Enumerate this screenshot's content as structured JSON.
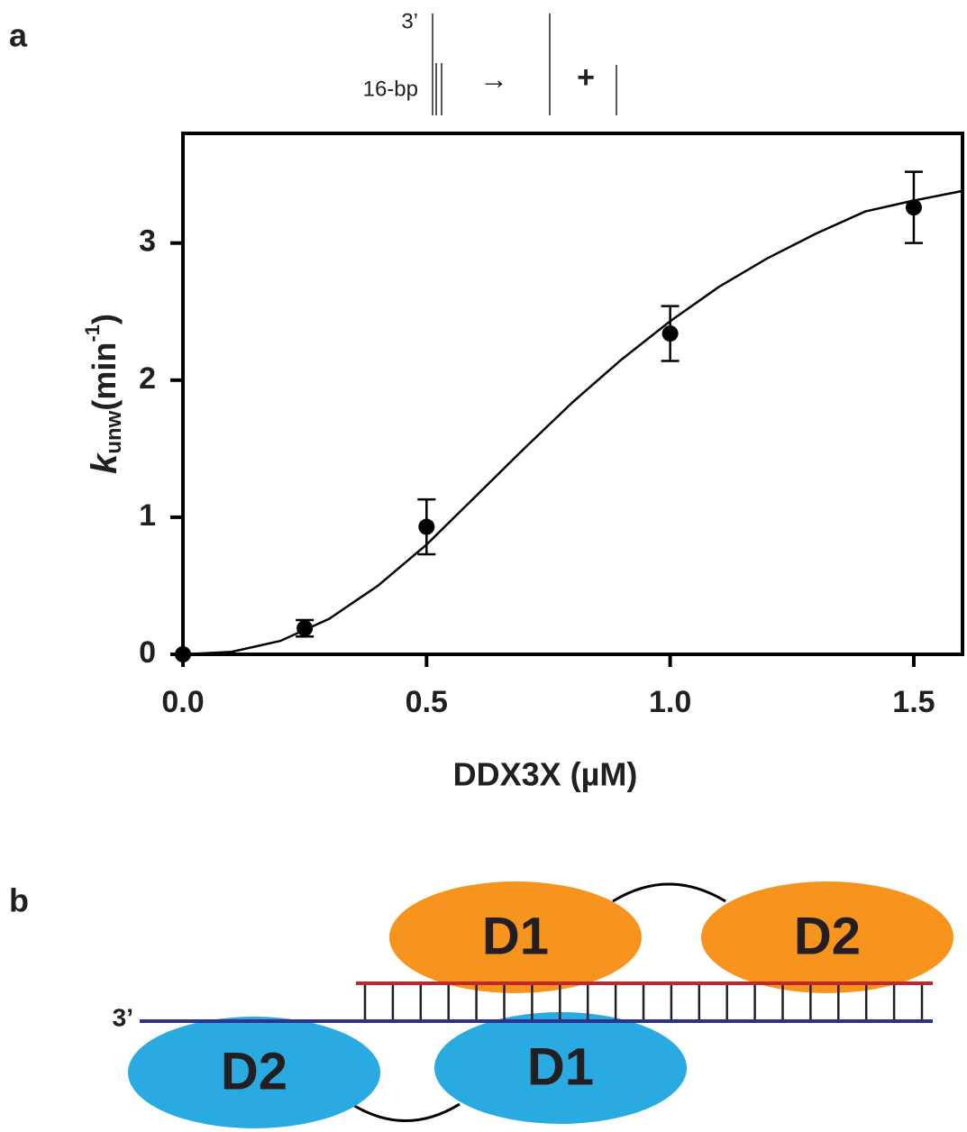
{
  "panel_labels": [
    "a",
    "b"
  ],
  "chart_data": {
    "type": "scatter",
    "xlabel": "DDX3X (µM)",
    "ylabel": {
      "k": "k",
      "sub": "unw",
      "main": "(min",
      "sup": "-1",
      "close": ")"
    },
    "xlim": [
      0,
      1.6
    ],
    "ylim": [
      0,
      3.8
    ],
    "xticks": [
      {
        "value": 0,
        "label": "0.0"
      },
      0.5,
      {
        "value": 1,
        "label": "1.0"
      },
      1.5
    ],
    "yticks": [
      0,
      1,
      2,
      3
    ],
    "color": "#000000",
    "points": {
      "x": [
        0,
        0.25,
        0.5,
        1.0,
        1.5
      ],
      "values": [
        0,
        0.19,
        0.93,
        2.34,
        3.26
      ],
      "errors": [
        0,
        0.06,
        0.2,
        0.2,
        0.26
      ]
    },
    "fit": {
      "x": [
        0,
        0.1,
        0.2,
        0.3,
        0.4,
        0.5,
        0.6,
        0.7,
        0.8,
        0.9,
        1.0,
        1.1,
        1.2,
        1.3,
        1.4,
        1.5,
        1.6
      ],
      "values": [
        0,
        0.018,
        0.098,
        0.259,
        0.5,
        0.8,
        1.15,
        1.5,
        1.84,
        2.15,
        2.43,
        2.68,
        2.89,
        3.07,
        3.23,
        3.31,
        3.38
      ]
    }
  },
  "substrate": {
    "end": "3’",
    "length": "16-bp",
    "arrow": "→",
    "sign": "+"
  },
  "schematic": {
    "top_d1": "D1",
    "top_d2": "D2",
    "bottom_d2": "D2",
    "bottom_d1": "D1",
    "end": "3’"
  }
}
